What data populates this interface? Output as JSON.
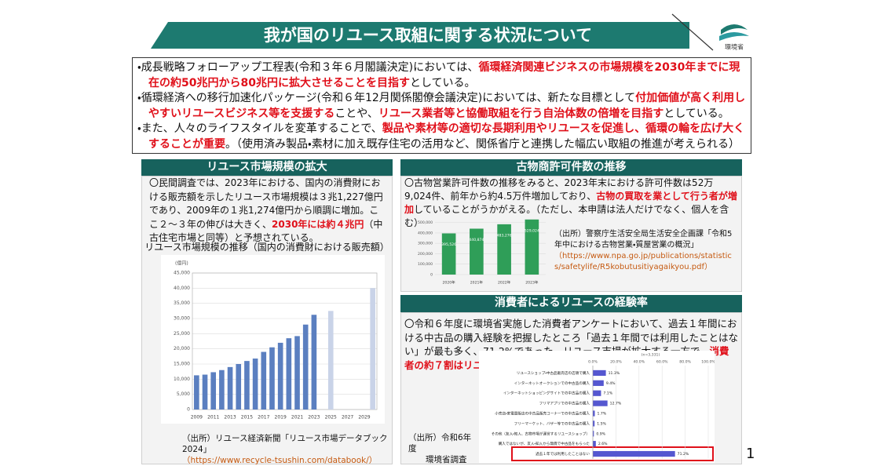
{
  "header": {
    "title": "我が国のリユース取組に関する状況について",
    "logo_text": "環境省"
  },
  "bullets": [
    [
      {
        "text": "・成長戦略フォローアップ工程表(令和３年６月閣議決定)においては、",
        "emphasis": false
      },
      {
        "text": "循環経済関連ビジネスの市場規模を2030年までに現在の約50兆円から80兆円に拡大させることを目指す",
        "emphasis": true
      },
      {
        "text": "としている。",
        "emphasis": false
      }
    ],
    [
      {
        "text": "・循環経済への移行加速化パッケージ(令和６年12月関係閣僚会議決定)においては、新たな目標として",
        "emphasis": false
      },
      {
        "text": "付加価値が高く利用しやすいリユースビジネス等を支援する",
        "emphasis": true
      },
      {
        "text": "ことや、",
        "emphasis": false
      },
      {
        "text": "リユース業者等と協働取組を行う自治体数の倍増を目指す",
        "emphasis": true
      },
      {
        "text": "としている。",
        "emphasis": false
      }
    ],
    [
      {
        "text": "・また、人々のライフスタイルを変革することで、",
        "emphasis": false
      },
      {
        "text": "製品や素材等の適切な長期利用やリユースを促進し、循環の輪を広げ大くすることが重要",
        "emphasis": true
      },
      {
        "text": "。（使用済み製品・素材に加え既存住宅の活用など、関係省庁と連携した幅広い取組の推進が考えられる）",
        "emphasis": false
      }
    ]
  ],
  "sections": [
    {
      "heading": "リユース市場規模の拡大",
      "body": [
        {
          "text": "〇民間調査では、2023年における、国内の消費財における販売額を示したリユース市場規模は３兆1,227億円であり、2009年の１兆1,274億円から順調に増加。ここ２～３年の伸びは大きく、",
          "emphasis": false
        },
        {
          "text": "2030年には約４兆円",
          "emphasis": true
        },
        {
          "text": "（中古住宅市場と同等）と予想されている。",
          "emphasis": false
        }
      ],
      "chart_title": "リユース市場規模の推移（国内の消費財における販売額）",
      "source": [
        "（出所）リユース経済新聞「リユース市場データブック2024」",
        "（https://www.recycle-tsushin.com/databook/）"
      ]
    },
    {
      "heading": "古物商許可件数の推移",
      "body": [
        {
          "text": "〇古物営業許可件数の推移をみると、2023年末における許可件数は52万9,024件、前年から約4.5万件増加しており、",
          "emphasis": false
        },
        {
          "text": "古物の買取を業として行う者が増加",
          "emphasis": true
        },
        {
          "text": "していることがうかがえる。（ただし、本申請は法人だけでなく、個人を含む）",
          "emphasis": false
        }
      ],
      "source": [
        "（出所）警察庁生活安全局生活安全企画課「令和5年中における古物営業・質屋営業の概況」",
        "（https://www.npa.go.jp/publications/statistics/safetylife/R5kobutusitiyagaikyou.pdf）"
      ]
    },
    {
      "heading": "消費者によるリユースの経験率",
      "body": [
        {
          "text": "〇令和６年度に環境省実施した消費者アンケートにおいて、過去１年間における中古品の購入経験を把握したところ「過去１年間では利用したことはない」が最も多く、71.2%であった。リユース市場が拡大する一方で、",
          "emphasis": false
        },
        {
          "text": "消費者の約７割はリユースを経験していない",
          "emphasis": true
        },
        {
          "text": "。",
          "emphasis": false
        }
      ],
      "source": [
        "（出所）令和6年度",
        "環境省調査"
      ]
    }
  ],
  "chart_data": [
    {
      "type": "bar",
      "unit_label": "(億円)",
      "categories": [
        2009,
        null,
        2011,
        null,
        2013,
        null,
        2015,
        null,
        2017,
        null,
        2019,
        null,
        2021,
        null,
        2023,
        null,
        2025,
        null,
        2027,
        null,
        2029,
        null
      ],
      "series": [
        {
          "color": "#5b7fc0",
          "values": [
            11274,
            11500,
            12300,
            13000,
            14000,
            15000,
            16000,
            16800,
            19000,
            20500,
            22000,
            23500,
            24200,
            28000,
            31227,
            null,
            null,
            null,
            null,
            null,
            null,
            null
          ]
        },
        {
          "color": "#c9d3e8",
          "values": [
            null,
            null,
            null,
            null,
            null,
            null,
            null,
            null,
            null,
            null,
            null,
            null,
            null,
            null,
            null,
            null,
            32500,
            null,
            null,
            null,
            null,
            40000
          ]
        }
      ],
      "ylim": [
        0,
        45000
      ],
      "yticks": [
        0,
        {
          "value": 5000,
          "label": "5,000"
        },
        {
          "value": 10000,
          "label": "10,000"
        },
        {
          "value": 15000,
          "label": "15,000"
        },
        {
          "value": 20000,
          "label": "20,000"
        },
        {
          "value": 25000,
          "label": "25,000"
        },
        {
          "value": 30000,
          "label": "30,000"
        },
        {
          "value": 35000,
          "label": "35,000"
        },
        {
          "value": 40000,
          "label": "40,000"
        },
        {
          "value": 45000,
          "label": "45,000"
        }
      ],
      "grid": true
    },
    {
      "type": "bar",
      "categories": [
        "2020年",
        "2021年",
        "2022年",
        "2023年"
      ],
      "values": [
        395526,
        440874,
        483276,
        529024
      ],
      "value_labels": [
        "395,526",
        "440,874",
        "483,276",
        "529,024"
      ],
      "color": "#2f9e58",
      "ylim": [
        0,
        550000
      ],
      "yticks": [
        0,
        {
          "value": 100000,
          "label": "100,000"
        },
        {
          "value": 200000,
          "label": "200,000"
        },
        {
          "value": 300000,
          "label": "300,000"
        },
        {
          "value": 400000,
          "label": "400,000"
        },
        {
          "value": 500000,
          "label": "500,000"
        }
      ],
      "grid": true
    },
    {
      "type": "hbar",
      "note": "(n=3,331)",
      "categories": [
        "リユースショップ・中古品販売店の店頭で購入",
        "インターネットオークションでの中古品の購入",
        "インターネットショッピングサイトでの中古品の購入",
        "フリマアプリでの中古品の購入",
        "小売店・家電量販店の中古品販売コーナーでの中古品の購入",
        "フリーマーケット、バザー等での中古品の購入",
        "その他（友人・知人、古物市場が運営するリユースショップ）",
        "購入ではないが、友人・知人から無償で中古品をもらった",
        "過去１年では利用したことはない"
      ],
      "values": [
        11.3,
        9.4,
        7.1,
        12.7,
        1.7,
        1.5,
        0.9,
        2.6,
        71.2
      ],
      "value_labels": [
        "11.3%",
        "9.4%",
        "7.1%",
        "12.7%",
        "1.7%",
        "1.5%",
        "0.9%",
        "2.6%",
        "71.2%"
      ],
      "color": "#5557d0",
      "xlim": [
        0,
        100
      ],
      "xticks": [
        {
          "value": 0,
          "label": "0.0%"
        },
        {
          "value": 20,
          "label": "20.0%"
        },
        {
          "value": 40,
          "label": "40.0%"
        },
        {
          "value": 60,
          "label": "60.0%"
        },
        {
          "value": 80,
          "label": "80.0%"
        },
        {
          "value": 100,
          "label": "100.0%"
        }
      ],
      "grid": true
    }
  ],
  "page_number": 1
}
